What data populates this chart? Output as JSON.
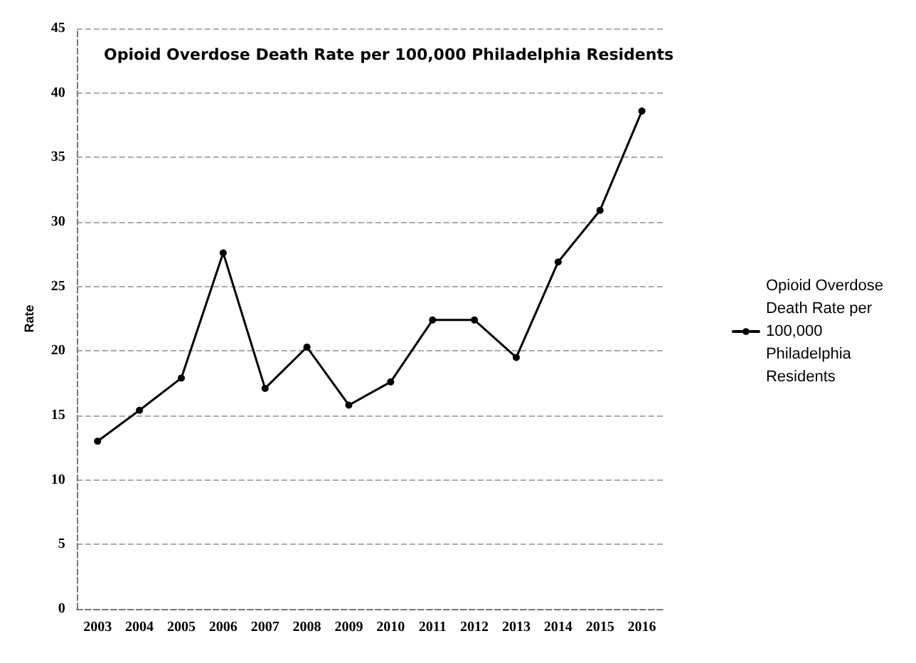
{
  "chart_data": {
    "type": "line",
    "title": "Opioid Overdose Death Rate per 100,000 Philadelphia Residents",
    "ylabel": "Rate",
    "categories": [
      "2003",
      "2004",
      "2005",
      "2006",
      "2007",
      "2008",
      "2009",
      "2010",
      "2011",
      "2012",
      "2013",
      "2014",
      "2015",
      "2016"
    ],
    "series": [
      {
        "name": "Opioid Overdose Death Rate per 100,000 Philadelphia Residents",
        "color": "#000000",
        "values": [
          13,
          15.4,
          17.9,
          27.6,
          17.1,
          20.3,
          15.8,
          17.6,
          22.4,
          22.4,
          19.5,
          26.9,
          30.9,
          38.6
        ]
      }
    ],
    "ylim": [
      0,
      45
    ],
    "yticks": [
      0,
      5,
      10,
      15,
      20,
      25,
      30,
      35,
      40,
      45
    ],
    "grid": "y",
    "legend": "right",
    "marker": "circle",
    "line_style": "solid"
  }
}
